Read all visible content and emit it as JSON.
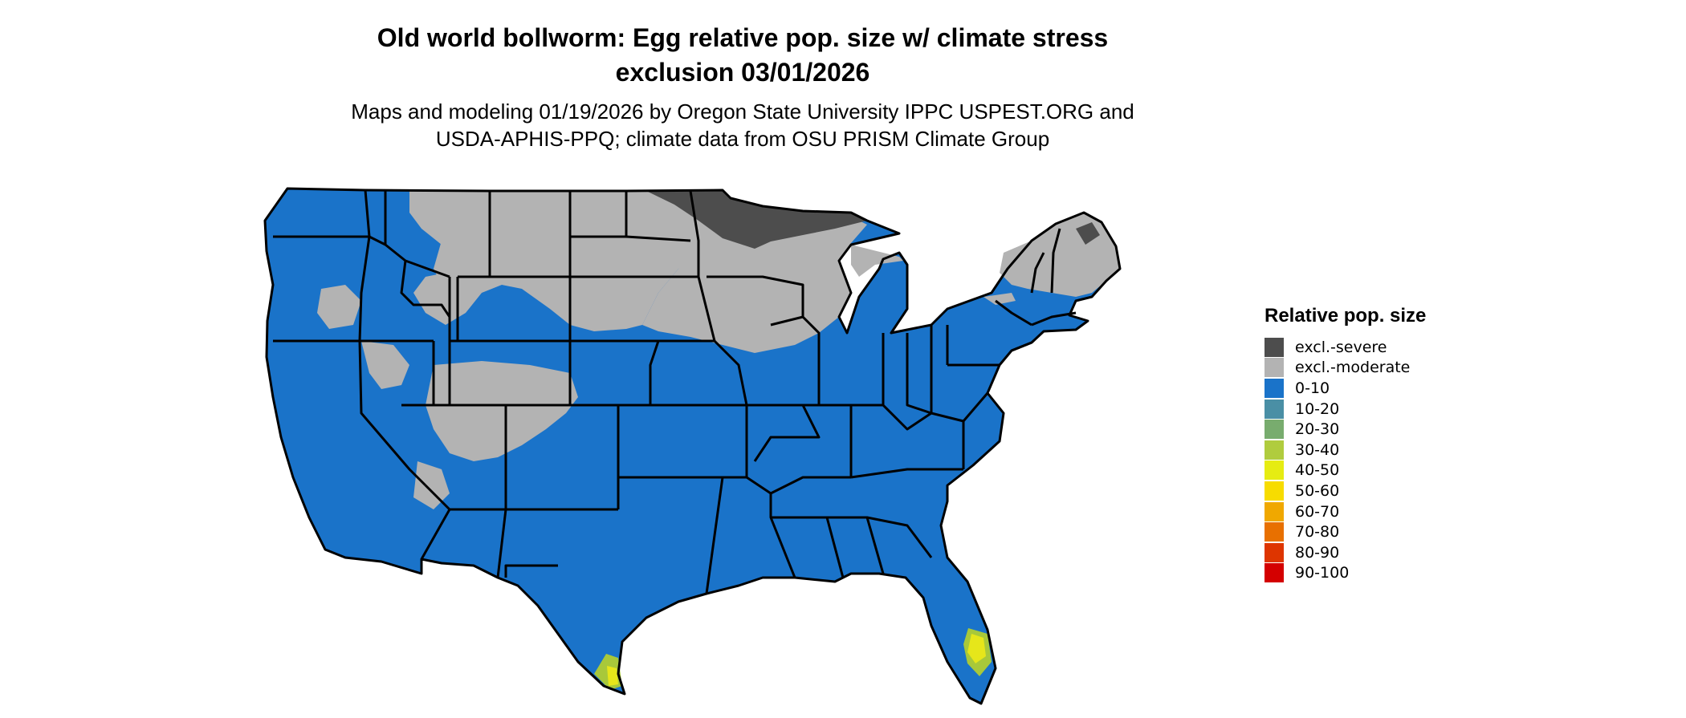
{
  "title_line1": "Old world bollworm: Egg relative pop. size w/ climate stress",
  "title_line2": "exclusion 03/01/2026",
  "subtitle_line1": "Maps and modeling 01/19/2026 by Oregon State University IPPC USPEST.ORG and",
  "subtitle_line2": "USDA-APHIS-PPQ; climate data from OSU PRISM Climate Group",
  "colors": {
    "excl_severe": "#4d4d4d",
    "excl_moderate": "#b3b3b3",
    "range_0_10": "#1a73c9",
    "suitability_high": "#e6e61a",
    "suitability_mid": "#a8c83a",
    "border": "#000000"
  },
  "legend": {
    "title": "Relative pop. size",
    "items": [
      {
        "label": "excl.-severe",
        "color": "#4d4d4d"
      },
      {
        "label": "excl.-moderate",
        "color": "#b3b3b3"
      },
      {
        "label": "0-10",
        "color": "#1a73c9"
      },
      {
        "label": "10-20",
        "color": "#4a8fa5"
      },
      {
        "label": "20-30",
        "color": "#78ac6e"
      },
      {
        "label": "30-40",
        "color": "#b0cc3e"
      },
      {
        "label": "40-50",
        "color": "#e6ec12"
      },
      {
        "label": "50-60",
        "color": "#f7dc00"
      },
      {
        "label": "60-70",
        "color": "#f0a800"
      },
      {
        "label": "70-80",
        "color": "#e87000"
      },
      {
        "label": "80-90",
        "color": "#de3500"
      },
      {
        "label": "90-100",
        "color": "#d40000"
      }
    ]
  }
}
